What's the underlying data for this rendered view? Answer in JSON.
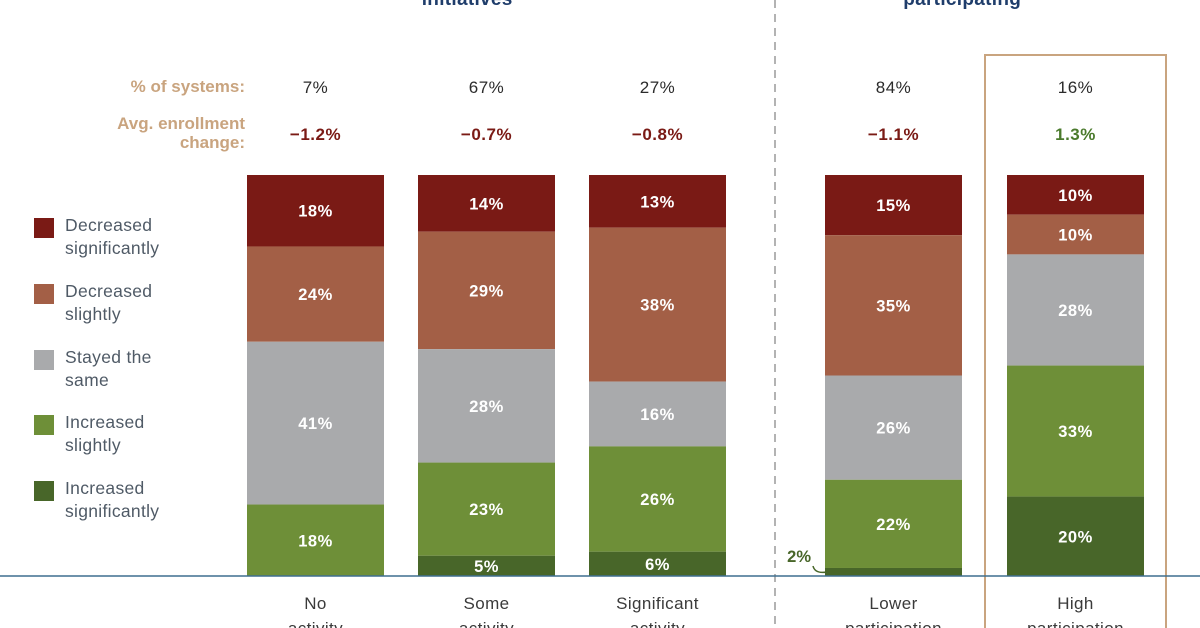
{
  "chart_data": {
    "type": "bar",
    "stacked": true,
    "normalized": true,
    "groups": [
      {
        "title": "Change in enrollment by level of activity on strategic initiatives* ** ^",
        "visible_title": "initiatives* ** ^"
      },
      {
        "title": "Change in enrollment by share of systems participating* ** ^",
        "visible_title": "participating* ** ^"
      }
    ],
    "row_labels": {
      "systems": "% of systems:",
      "enrollment": "Avg. enrollment change:"
    },
    "categories": [
      "No activity",
      "Some activity",
      "Significant activity",
      "Lower participation",
      "High participation"
    ],
    "pct_systems": [
      "7%",
      "67%",
      "27%",
      "84%",
      "16%"
    ],
    "avg_enrollment_change": [
      "−1.2%",
      "−0.7%",
      "−0.8%",
      "−1.1%",
      "1.3%"
    ],
    "series": [
      {
        "name": "Decreased significantly",
        "color": "#7a1a15",
        "values": [
          18,
          14,
          13,
          15,
          10
        ],
        "labels": [
          "18%",
          "14%",
          "13%",
          "15%",
          "10%"
        ]
      },
      {
        "name": "Decreased slightly",
        "color": "#a35f46",
        "values": [
          24,
          29,
          38,
          35,
          10
        ],
        "labels": [
          "24%",
          "29%",
          "38%",
          "35%",
          "10%"
        ]
      },
      {
        "name": "Stayed the same",
        "color": "#a9aaac",
        "values": [
          41,
          28,
          16,
          26,
          28
        ],
        "labels": [
          "41%",
          "28%",
          "16%",
          "26%",
          "28%"
        ]
      },
      {
        "name": "Increased slightly",
        "color": "#6e8f38",
        "values": [
          18,
          23,
          26,
          22,
          33
        ],
        "labels": [
          "18%",
          "23%",
          "26%",
          "22%",
          "33%"
        ]
      },
      {
        "name": "Increased significantly",
        "color": "#486629",
        "values": [
          0,
          5,
          6,
          2,
          20
        ],
        "labels": [
          "",
          "5%",
          "6%",
          "2%",
          "20%"
        ]
      }
    ],
    "highlight_category": "High participation",
    "colors": {
      "title": "#1f3d6b",
      "row_label": "#c9a47f",
      "negative": "#7a1a15",
      "positive": "#4a7a2c",
      "baseline": "#3f6f8f",
      "highlight_box": "#c9a47f"
    }
  }
}
